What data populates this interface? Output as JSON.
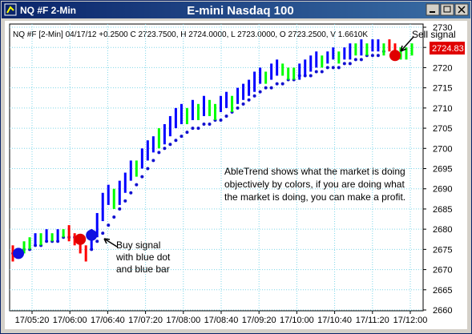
{
  "window_title": "NQ #F 2-Min",
  "chart_data": {
    "type": "range_bars",
    "title": "E-mini Nasdaq 100",
    "header": "NQ #F [2-Min] 04/17/12 +0.2500 C 2723.7500, H 2724.0000, L 2723.0000, O 2723.2500, V 1.6610K",
    "annotation_lines": [
      "AbleTrend shows what the market is doing",
      "objectively by colors, if you are doing what",
      "the market is doing, you can make a profit."
    ],
    "buy_label_lines": [
      "Buy signal",
      "with blue dot",
      "and blue bar"
    ],
    "sell_label": "Sell signal",
    "last_price": 2724.83,
    "ylim": [
      2660,
      2730
    ],
    "yticks": [
      2660,
      2665,
      2670,
      2675,
      2680,
      2685,
      2690,
      2695,
      2700,
      2705,
      2710,
      2715,
      2720,
      2725,
      2730
    ],
    "xticks": [
      "17/05:20",
      "17/06:00",
      "17/06:40",
      "17/07:20",
      "17/08:00",
      "17/08:40",
      "17/09:20",
      "17/10:00",
      "17/10:40",
      "17/11:20",
      "17/12:00"
    ],
    "grid": true,
    "high": [
      2676,
      2675,
      2677,
      2678,
      2679,
      2679,
      2680,
      2679,
      2680,
      2680,
      2681,
      2679,
      2678,
      2676,
      2680,
      2684,
      2689,
      2691,
      2690,
      2692,
      2694,
      2697,
      2697,
      2700,
      2702,
      2703,
      2705,
      2706,
      2708,
      2710,
      2711,
      2710,
      2712,
      2711,
      2713,
      2712,
      2711,
      2713,
      2714,
      2713,
      2715,
      2716,
      2717,
      2719,
      2720,
      2719,
      2721,
      2722,
      2721,
      2720,
      2720,
      2721,
      2722,
      2723,
      2724,
      2723,
      2724,
      2725,
      2724,
      2725,
      2726,
      2726,
      2727,
      2726,
      2727,
      2727,
      2726,
      2727,
      2726,
      2725,
      2725,
      2726
    ],
    "low": [
      2672,
      2673,
      2674,
      2675,
      2676,
      2676,
      2677,
      2677,
      2677,
      2678,
      2677,
      2676,
      2674,
      2672,
      2675,
      2678,
      2682,
      2686,
      2685,
      2686,
      2689,
      2692,
      2693,
      2695,
      2697,
      2699,
      2700,
      2701,
      2703,
      2705,
      2706,
      2706,
      2707,
      2707,
      2708,
      2708,
      2707,
      2709,
      2710,
      2709,
      2711,
      2712,
      2713,
      2714,
      2716,
      2716,
      2717,
      2718,
      2718,
      2717,
      2717,
      2717,
      2718,
      2719,
      2720,
      2720,
      2721,
      2722,
      2721,
      2722,
      2722,
      2723,
      2723,
      2723,
      2724,
      2724,
      2723,
      2724,
      2723,
      2722,
      2722,
      2723
    ],
    "colors": [
      "red",
      "red",
      "lime",
      "lime",
      "blue",
      "lime",
      "blue",
      "lime",
      "blue",
      "lime",
      "red",
      "red",
      "red",
      "red",
      "blue",
      "blue",
      "blue",
      "blue",
      "lime",
      "blue",
      "blue",
      "blue",
      "lime",
      "blue",
      "blue",
      "blue",
      "lime",
      "blue",
      "blue",
      "blue",
      "blue",
      "lime",
      "blue",
      "lime",
      "blue",
      "lime",
      "lime",
      "blue",
      "blue",
      "lime",
      "blue",
      "blue",
      "blue",
      "blue",
      "blue",
      "lime",
      "blue",
      "blue",
      "lime",
      "lime",
      "lime",
      "blue",
      "blue",
      "blue",
      "blue",
      "lime",
      "blue",
      "blue",
      "lime",
      "blue",
      "blue",
      "lime",
      "blue",
      "lime",
      "blue",
      "blue",
      "lime",
      "red",
      "red",
      "lime",
      "lime",
      "lime"
    ],
    "stops": [
      2674,
      2674,
      2675,
      2675,
      2676,
      2676,
      2677,
      2677,
      2677,
      2678,
      2678,
      2678,
      null,
      null,
      2675,
      2677,
      2679,
      2681,
      2683,
      2685,
      2687,
      2689,
      2691,
      2693,
      2695,
      2697,
      2699,
      2700,
      2701,
      2702,
      2703,
      2704,
      2705,
      2705,
      2706,
      2706,
      2707,
      2707,
      2708,
      2709,
      2710,
      2711,
      2712,
      2713,
      2714,
      2715,
      2715,
      2716,
      2716,
      2717,
      2717,
      2718,
      2718,
      2718,
      2719,
      2719,
      2720,
      2720,
      2720,
      2721,
      2721,
      2722,
      2722,
      2723,
      2723,
      2723,
      2724,
      null,
      null,
      null,
      null,
      null
    ],
    "buy_dots": [
      null,
      2674,
      null,
      null,
      null,
      null,
      null,
      null,
      null,
      null,
      null,
      null,
      null,
      null,
      2678.5,
      null,
      null,
      null,
      null,
      null,
      null,
      null,
      null,
      null,
      null,
      null,
      null,
      null,
      null,
      null,
      null,
      null,
      null,
      null,
      null,
      null,
      null,
      null,
      null,
      null,
      null,
      null,
      null,
      null,
      null,
      null,
      null,
      null,
      null,
      null,
      null,
      null,
      null,
      null,
      null,
      null,
      null,
      null,
      null,
      null,
      null,
      null,
      null,
      null,
      null,
      null,
      null,
      null,
      null,
      null,
      null,
      null
    ],
    "sell_dots": [
      null,
      null,
      null,
      null,
      null,
      null,
      null,
      null,
      null,
      null,
      null,
      null,
      2677.5,
      null,
      null,
      null,
      null,
      null,
      null,
      null,
      null,
      null,
      null,
      null,
      null,
      null,
      null,
      null,
      null,
      null,
      null,
      null,
      null,
      null,
      null,
      null,
      null,
      null,
      null,
      null,
      null,
      null,
      null,
      null,
      null,
      null,
      null,
      null,
      null,
      null,
      null,
      null,
      null,
      null,
      null,
      null,
      null,
      null,
      null,
      null,
      null,
      null,
      null,
      null,
      null,
      null,
      null,
      null,
      2723,
      null,
      null,
      null
    ]
  }
}
